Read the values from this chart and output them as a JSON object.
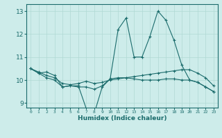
{
  "title": "",
  "xlabel": "Humidex (Indice chaleur)",
  "ylabel": "",
  "xlim": [
    -0.5,
    23.5
  ],
  "ylim": [
    8.8,
    13.3
  ],
  "yticks": [
    9,
    10,
    11,
    12,
    13
  ],
  "xticks": [
    0,
    1,
    2,
    3,
    4,
    5,
    6,
    7,
    8,
    9,
    10,
    11,
    12,
    13,
    14,
    15,
    16,
    17,
    18,
    19,
    20,
    21,
    22,
    23
  ],
  "background_color": "#cdecea",
  "grid_color": "#b0d8d4",
  "line_color": "#1a6b6b",
  "series": [
    {
      "x": [
        0,
        1,
        2,
        3,
        4,
        5,
        6,
        7,
        8,
        9,
        10,
        11,
        12,
        13,
        14,
        15,
        16,
        17,
        18,
        19,
        20,
        21,
        22,
        23
      ],
      "y": [
        10.5,
        10.3,
        10.35,
        10.2,
        9.7,
        9.75,
        9.75,
        8.75,
        8.55,
        9.7,
        10.05,
        12.2,
        12.7,
        11.0,
        11.0,
        11.9,
        13.0,
        12.6,
        11.75,
        10.65,
        10.0,
        9.9,
        9.7,
        9.5
      ]
    },
    {
      "x": [
        0,
        1,
        2,
        3,
        4,
        5,
        6,
        7,
        8,
        9,
        10,
        11,
        12,
        13,
        14,
        15,
        16,
        17,
        18,
        19,
        20,
        21,
        22,
        23
      ],
      "y": [
        10.5,
        10.3,
        10.1,
        10.0,
        9.7,
        9.75,
        9.7,
        9.7,
        9.6,
        9.75,
        10.05,
        10.1,
        10.1,
        10.05,
        10.0,
        10.0,
        10.0,
        10.05,
        10.05,
        10.0,
        10.0,
        9.9,
        9.7,
        9.5
      ]
    },
    {
      "x": [
        0,
        1,
        2,
        3,
        4,
        5,
        6,
        7,
        8,
        9,
        10,
        11,
        12,
        13,
        14,
        15,
        16,
        17,
        18,
        19,
        20,
        21,
        22,
        23
      ],
      "y": [
        10.5,
        10.35,
        10.2,
        10.1,
        9.85,
        9.8,
        9.85,
        9.95,
        9.85,
        9.9,
        10.0,
        10.05,
        10.1,
        10.15,
        10.2,
        10.25,
        10.3,
        10.35,
        10.4,
        10.45,
        10.45,
        10.3,
        10.1,
        9.75
      ]
    }
  ]
}
